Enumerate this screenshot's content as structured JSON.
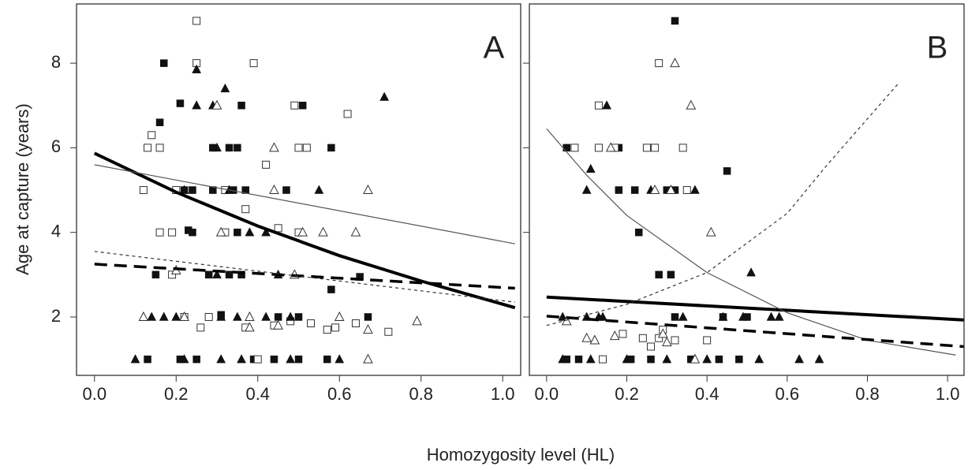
{
  "chart_data": [
    {
      "type": "scatter",
      "annotation": "A",
      "ylabel": "Age at capture (years)",
      "xlabel": "Homozygosity level (HL)",
      "xlim": [
        -0.044,
        1.044
      ],
      "ylim": [
        0.62,
        9.4
      ],
      "xticks": [
        {
          "value": 0,
          "label": "0.0"
        },
        0.2,
        0.4,
        0.6,
        0.8,
        {
          "value": 1,
          "label": "1.0"
        }
      ],
      "yticks": [
        2,
        4,
        6,
        8
      ],
      "show_ytick_labels": true,
      "series": [
        {
          "mode": "points",
          "marker": "filled-square",
          "color": "#111111",
          "x": [
            0.17,
            0.16,
            0.21,
            0.36,
            0.51,
            0.29,
            0.33,
            0.35,
            0.58,
            0.22,
            0.24,
            0.29,
            0.34,
            0.37,
            0.47,
            0.23,
            0.24,
            0.35,
            0.15,
            0.28,
            0.33,
            0.36,
            0.58,
            0.65,
            0.31,
            0.45,
            0.5,
            0.67,
            0.13,
            0.21,
            0.25,
            0.39,
            0.44,
            0.5,
            0.57
          ],
          "values": [
            8,
            6.6,
            7.05,
            7,
            7,
            6,
            6,
            6,
            6,
            5,
            5,
            5,
            5,
            5,
            5,
            4.05,
            4,
            4,
            3,
            3,
            3,
            3,
            2.65,
            2.95,
            2.05,
            2,
            2,
            2,
            1,
            1,
            1,
            1,
            1,
            1,
            1
          ]
        },
        {
          "mode": "points",
          "marker": "open-square",
          "color": "#333333",
          "x": [
            0.25,
            0.25,
            0.39,
            0.14,
            0.13,
            0.16,
            0.5,
            0.52,
            0.62,
            0.42,
            0.12,
            0.2,
            0.32,
            0.37,
            0.16,
            0.19,
            0.32,
            0.45,
            0.5,
            0.49,
            0.19,
            0.22,
            0.28,
            0.37,
            0.44,
            0.48,
            0.53,
            0.57,
            0.64,
            0.72,
            0.4,
            0.26,
            0.59
          ],
          "values": [
            9,
            8,
            8,
            6.3,
            6,
            6,
            6,
            6,
            6.8,
            5.6,
            5,
            5,
            5,
            4.55,
            4,
            4,
            4,
            4.1,
            4,
            7,
            3,
            2,
            2,
            1.75,
            1.8,
            1.9,
            1.85,
            1.7,
            1.85,
            1.65,
            1,
            1.75,
            1.75
          ]
        },
        {
          "mode": "points",
          "marker": "filled-triangle",
          "color": "#111111",
          "x": [
            0.25,
            0.25,
            0.29,
            0.32,
            0.71,
            0.3,
            0.44,
            0.22,
            0.33,
            0.55,
            0.38,
            0.42,
            0.14,
            0.17,
            0.2,
            0.31,
            0.35,
            0.42,
            0.48,
            0.1,
            0.22,
            0.31,
            0.36,
            0.48,
            0.6,
            0.45,
            0.3
          ],
          "values": [
            7.85,
            7,
            7,
            7.4,
            7.2,
            6,
            6,
            5,
            5,
            5,
            4,
            4,
            2,
            2,
            2,
            2,
            2,
            2,
            2,
            1,
            1,
            1,
            1,
            1,
            1,
            3,
            3
          ]
        },
        {
          "mode": "points",
          "marker": "open-triangle",
          "color": "#333333",
          "x": [
            0.3,
            0.44,
            0.44,
            0.67,
            0.31,
            0.51,
            0.56,
            0.64,
            0.2,
            0.49,
            0.12,
            0.22,
            0.38,
            0.45,
            0.6,
            0.67,
            0.79,
            0.67,
            0.38
          ],
          "values": [
            7,
            6,
            5,
            5,
            4,
            4,
            4,
            4,
            3.1,
            3,
            2,
            2,
            1.75,
            1.8,
            2,
            1.7,
            1.9,
            1,
            2
          ]
        },
        {
          "mode": "line",
          "linestyle": "solid",
          "width": 4,
          "color": "#000000",
          "x": [
            0,
            0.2,
            0.4,
            0.6,
            0.8,
            1.03
          ],
          "values": [
            5.87,
            4.95,
            4.15,
            3.45,
            2.85,
            2.22
          ]
        },
        {
          "mode": "line",
          "linestyle": "solid",
          "width": 1.2,
          "color": "#555555",
          "x": [
            0,
            1.03
          ],
          "values": [
            5.6,
            3.73
          ]
        },
        {
          "mode": "line",
          "linestyle": "dashed",
          "width": 3.5,
          "color": "#000000",
          "x": [
            0,
            1.03
          ],
          "values": [
            3.25,
            2.68
          ]
        },
        {
          "mode": "line",
          "linestyle": "dotted",
          "width": 1.2,
          "color": "#333333",
          "x": [
            0,
            1.03
          ],
          "values": [
            3.55,
            2.35
          ]
        }
      ]
    },
    {
      "type": "scatter",
      "annotation": "B",
      "xlim": [
        -0.043,
        1.041
      ],
      "ylim": [
        0.62,
        9.4
      ],
      "xticks": [
        {
          "value": 0,
          "label": "0.0"
        },
        0.2,
        0.4,
        0.6,
        0.8,
        {
          "value": 1,
          "label": "1.0"
        }
      ],
      "yticks": [
        2,
        4,
        6,
        8
      ],
      "show_ytick_labels": false,
      "series": [
        {
          "mode": "points",
          "marker": "filled-square",
          "color": "#111111",
          "x": [
            0.32,
            0.05,
            0.18,
            0.22,
            0.18,
            0.3,
            0.32,
            0.45,
            0.23,
            0.28,
            0.31,
            0.5,
            0.32,
            0.44,
            0.05,
            0.08,
            0.21,
            0.26,
            0.36,
            0.43,
            0.48
          ],
          "values": [
            9,
            6,
            6,
            5,
            5,
            5,
            5,
            5.45,
            4,
            3,
            3,
            2,
            2,
            2,
            1,
            1,
            1,
            1,
            1,
            1,
            1
          ]
        },
        {
          "mode": "points",
          "marker": "open-square",
          "color": "#333333",
          "x": [
            0.28,
            0.13,
            0.07,
            0.13,
            0.17,
            0.25,
            0.27,
            0.34,
            0.35,
            0.19,
            0.24,
            0.26,
            0.29,
            0.32,
            0.4,
            0.14,
            0.28
          ],
          "values": [
            8,
            7,
            6,
            6,
            6,
            6,
            6,
            6,
            5,
            1.6,
            1.5,
            1.3,
            1.7,
            1.45,
            1.45,
            1,
            1.5
          ]
        },
        {
          "mode": "points",
          "marker": "filled-triangle",
          "color": "#111111",
          "x": [
            0.15,
            0.11,
            0.1,
            0.26,
            0.37,
            0.51,
            0.04,
            0.1,
            0.13,
            0.34,
            0.44,
            0.49,
            0.56,
            0.58,
            0.04,
            0.11,
            0.2,
            0.3,
            0.4,
            0.53,
            0.63,
            0.68,
            0.14
          ],
          "values": [
            7,
            5.5,
            5,
            5,
            5,
            3.05,
            2,
            2,
            2,
            2,
            2,
            2,
            2,
            2,
            1,
            1,
            1,
            1,
            1,
            1,
            1,
            1,
            2
          ]
        },
        {
          "mode": "points",
          "marker": "open-triangle",
          "color": "#333333",
          "x": [
            0.32,
            0.36,
            0.27,
            0.31,
            0.41,
            0.05,
            0.1,
            0.12,
            0.17,
            0.29,
            0.3,
            0.16,
            0.37
          ],
          "values": [
            8,
            7,
            5,
            5,
            4,
            1.9,
            1.5,
            1.45,
            1.55,
            1.6,
            1.4,
            6,
            1
          ]
        },
        {
          "mode": "line",
          "linestyle": "solid",
          "width": 4,
          "color": "#000000",
          "x": [
            0,
            1.04
          ],
          "values": [
            2.47,
            1.93
          ]
        },
        {
          "mode": "line",
          "linestyle": "solid",
          "width": 1.2,
          "color": "#555555",
          "x": [
            0,
            0.1,
            0.2,
            0.4,
            0.6,
            0.8,
            1.02
          ],
          "values": [
            6.45,
            5.35,
            4.4,
            3.05,
            2.1,
            1.45,
            1.1
          ]
        },
        {
          "mode": "line",
          "linestyle": "dashed",
          "width": 3.5,
          "color": "#000000",
          "x": [
            0,
            1.04
          ],
          "values": [
            2.02,
            1.3
          ]
        },
        {
          "mode": "line",
          "linestyle": "dotted",
          "width": 1.2,
          "color": "#333333",
          "x": [
            0,
            0.2,
            0.4,
            0.6,
            0.7,
            0.88
          ],
          "values": [
            1.8,
            2.3,
            3.05,
            4.45,
            5.6,
            7.55
          ]
        }
      ]
    }
  ]
}
